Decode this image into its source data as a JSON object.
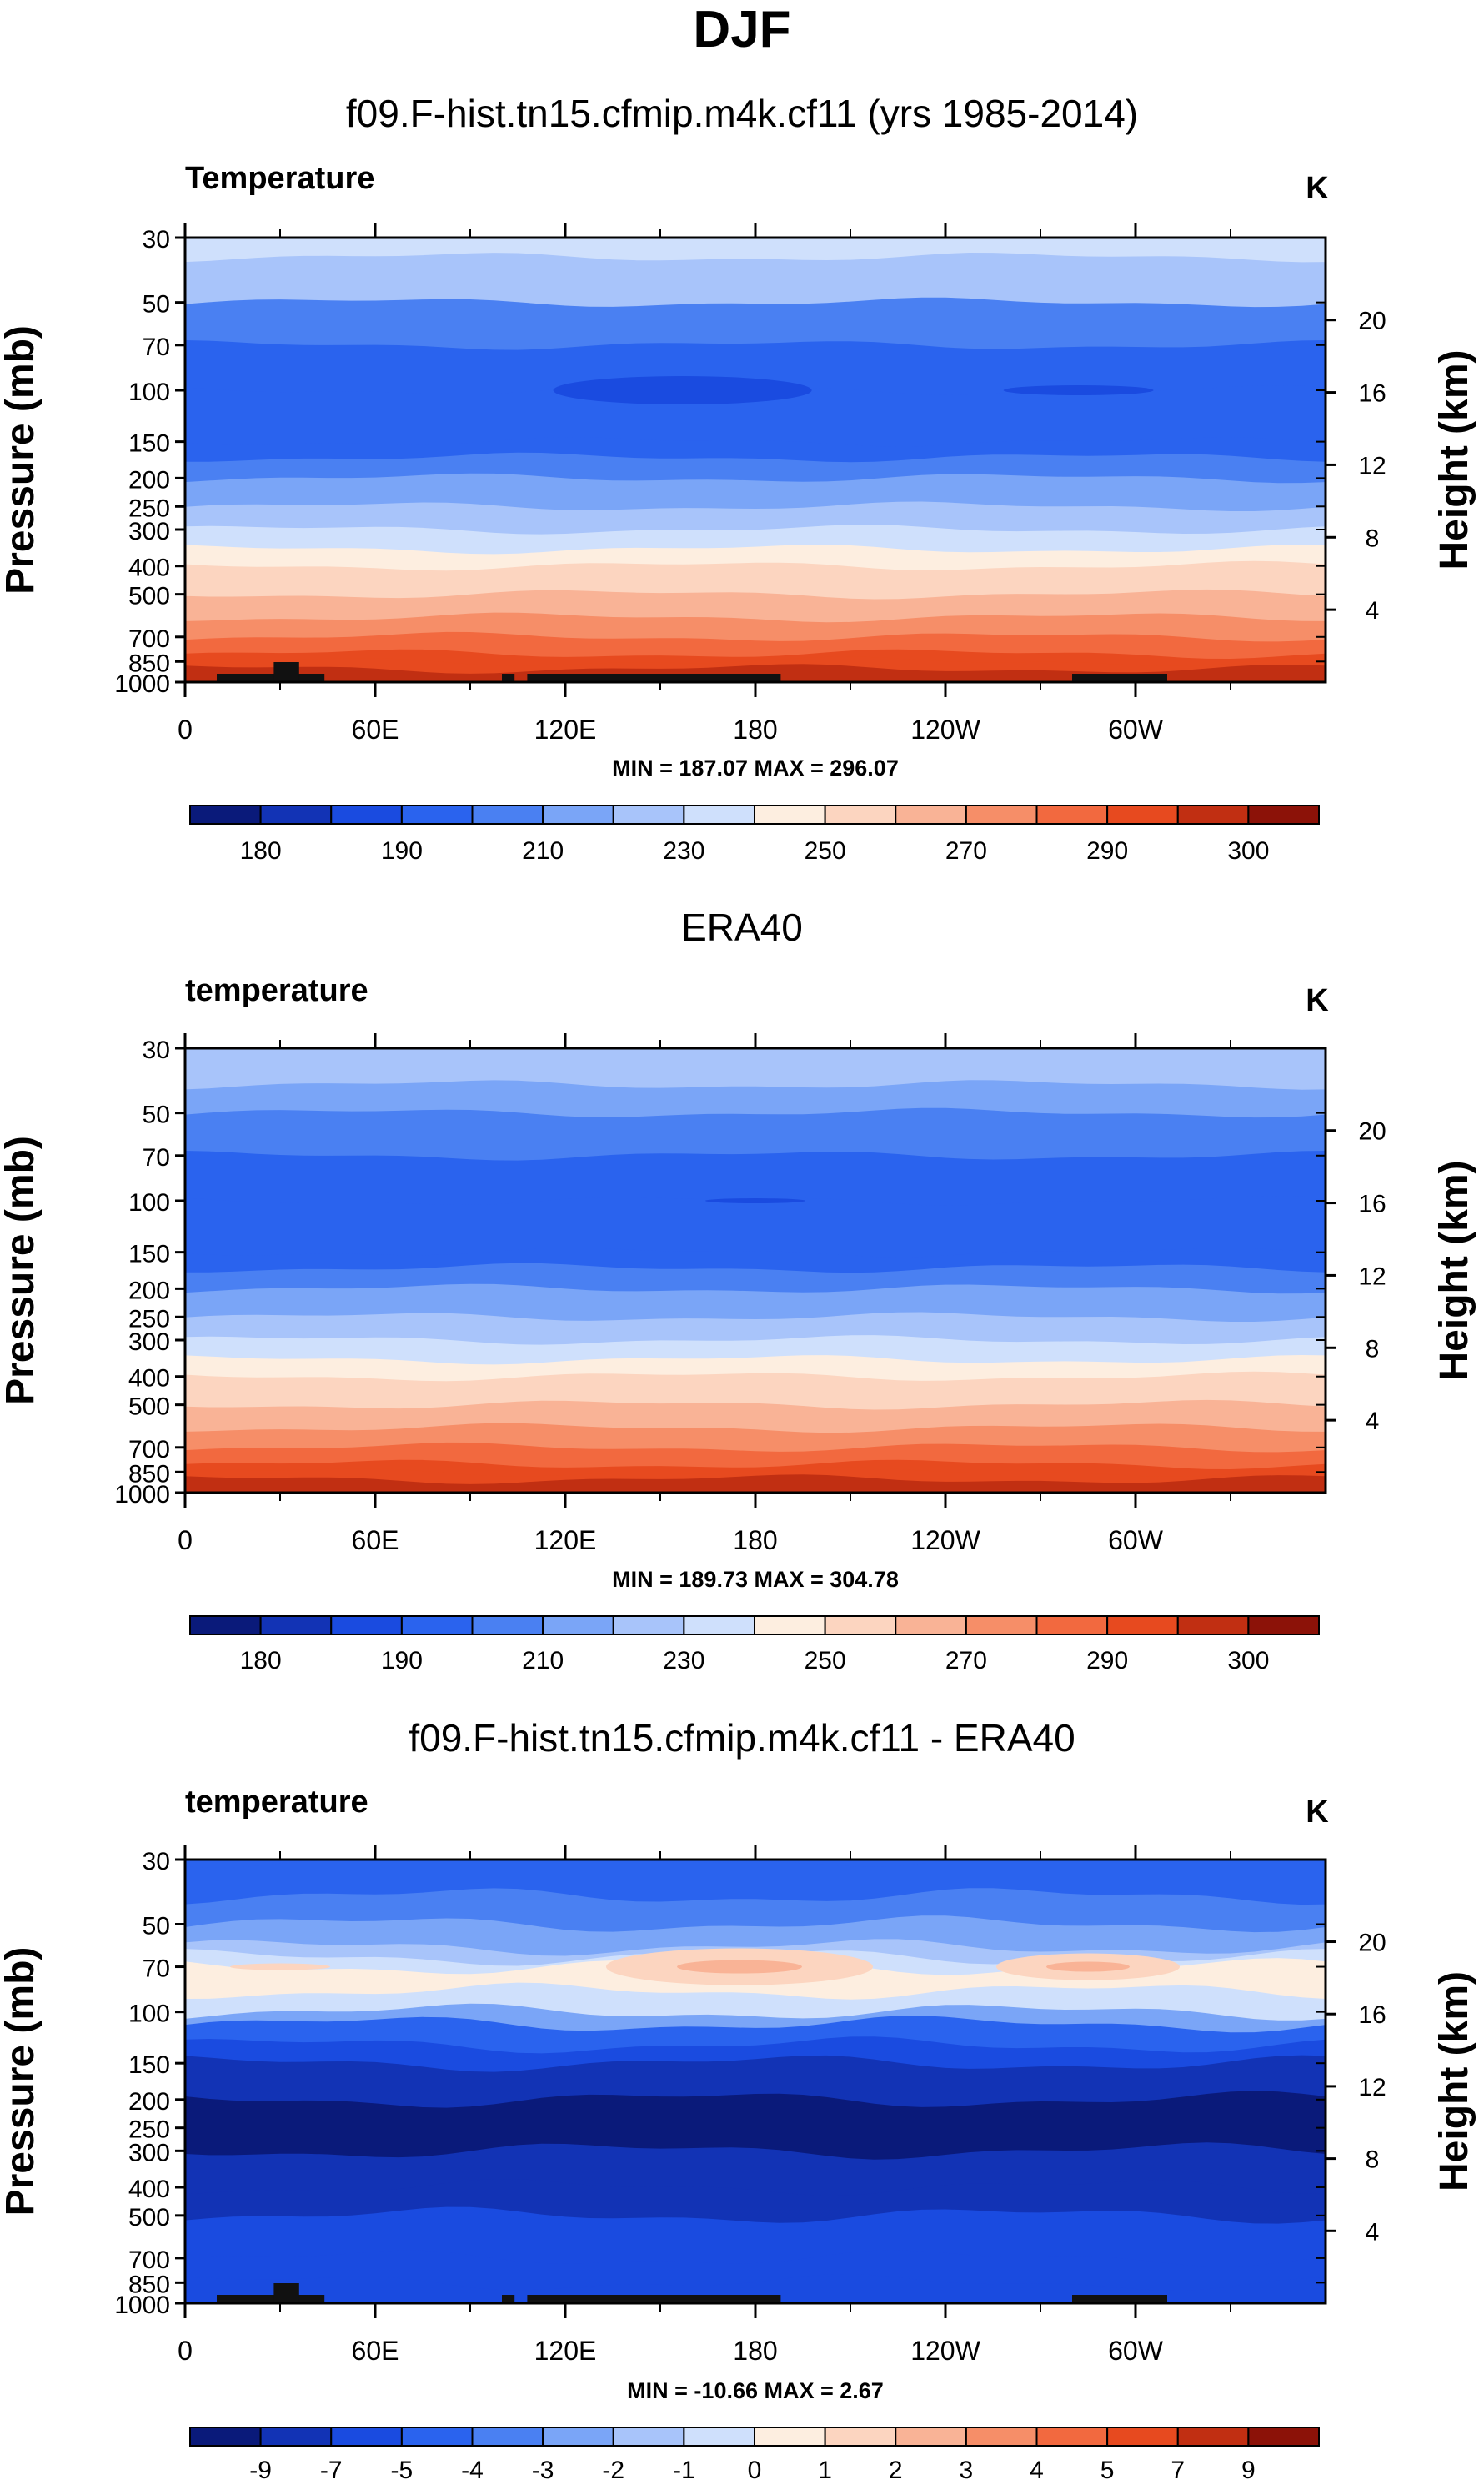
{
  "figure_title": "DJF",
  "x_ticks": [
    "0",
    "60E",
    "120E",
    "180",
    "120W",
    "60W"
  ],
  "p_ticks": [
    "30",
    "50",
    "70",
    "100",
    "150",
    "200",
    "250",
    "300",
    "400",
    "500",
    "700",
    "850",
    "1000"
  ],
  "h_ticks": [
    "20",
    "16",
    "12",
    "8",
    "4"
  ],
  "ylabel_left": "Pressure (mb)",
  "ylabel_right": "Height (km)",
  "unit": "K",
  "colors": {
    "temp_palette": [
      "#0a1a7a",
      "#1233b5",
      "#1a4be0",
      "#2a63ee",
      "#4a80f2",
      "#7aa5f7",
      "#a8c4fa",
      "#cfe0fc",
      "#fdeee0",
      "#fcd5c0",
      "#f9b396",
      "#f68e68",
      "#f2693f",
      "#e74a1f",
      "#c12f12",
      "#8c1208"
    ],
    "diff_palette": [
      "#0a1a7a",
      "#1233b5",
      "#1a4be0",
      "#2a63ee",
      "#4a80f2",
      "#7aa5f7",
      "#a8c4fa",
      "#cfe0fc",
      "#fdeee0",
      "#fcd5c0",
      "#f9b396",
      "#f68e68",
      "#f2693f",
      "#e74a1f",
      "#c12f12",
      "#8c1208"
    ],
    "terrain": "#111111"
  },
  "chart_data": [
    {
      "type": "heatmap",
      "title": "f09.F-hist.tn15.cfmip.m4k.cf11 (yrs 1985-2014)",
      "variable": "Temperature",
      "stats": "MIN = 187.07  MAX = 296.07",
      "x": "longitude 0-360",
      "y": "pressure (mb) 30-1000, log scale",
      "colorbar_labels": [
        "180",
        "190",
        "210",
        "230",
        "250",
        "270",
        "290",
        "300"
      ],
      "profile_levels_mb": [
        30,
        35,
        50,
        60,
        70,
        100,
        150,
        170,
        200,
        250,
        300,
        350,
        400,
        500,
        600,
        700,
        800,
        850,
        900,
        1000
      ],
      "profile_color_index": [
        7,
        6,
        4,
        4,
        3,
        3,
        3,
        4,
        5,
        6,
        7,
        8,
        9,
        10,
        11,
        12,
        13,
        13,
        14,
        14
      ],
      "features": [
        "100 mb cold pool near 160E",
        "100 mb cold pool near 80W",
        "surface topography masked black"
      ]
    },
    {
      "type": "heatmap",
      "title": "ERA40",
      "variable": "temperature",
      "stats": "MIN = 189.73  MAX = 304.78",
      "x": "longitude 0-360",
      "y": "pressure (mb) 30-1000, log scale",
      "colorbar_labels": [
        "180",
        "190",
        "210",
        "230",
        "250",
        "270",
        "290",
        "300"
      ],
      "profile_levels_mb": [
        30,
        40,
        50,
        60,
        70,
        100,
        150,
        170,
        200,
        250,
        300,
        350,
        400,
        500,
        600,
        700,
        800,
        850,
        900,
        1000
      ],
      "profile_color_index": [
        6,
        5,
        4,
        4,
        3,
        3,
        3,
        4,
        5,
        6,
        7,
        8,
        9,
        10,
        11,
        12,
        13,
        13,
        14,
        15
      ]
    },
    {
      "type": "heatmap",
      "title": "f09.F-hist.tn15.cfmip.m4k.cf11 - ERA40",
      "variable": "temperature",
      "stats": "MIN = -10.66  MAX =   2.67",
      "x": "longitude 0-360",
      "y": "pressure (mb) 30-1000, log scale",
      "colorbar_labels": [
        "-9",
        "-7",
        "-5",
        "-4",
        "-3",
        "-2",
        "-1",
        "0",
        "1",
        "2",
        "3",
        "4",
        "5",
        "7",
        "9"
      ],
      "profile_levels_mb": [
        30,
        40,
        50,
        60,
        65,
        70,
        75,
        85,
        100,
        110,
        130,
        150,
        200,
        300,
        400,
        500,
        700,
        850,
        1000
      ],
      "profile_color_index": [
        3,
        4,
        5,
        6,
        7,
        8,
        8,
        7,
        5,
        3,
        2,
        1,
        0,
        1,
        1,
        2,
        2,
        2,
        2
      ],
      "features": [
        "warm bias near 70 mb around 170E and 70W",
        "cold bias up to -10.66 near 200-300 mb"
      ]
    }
  ]
}
